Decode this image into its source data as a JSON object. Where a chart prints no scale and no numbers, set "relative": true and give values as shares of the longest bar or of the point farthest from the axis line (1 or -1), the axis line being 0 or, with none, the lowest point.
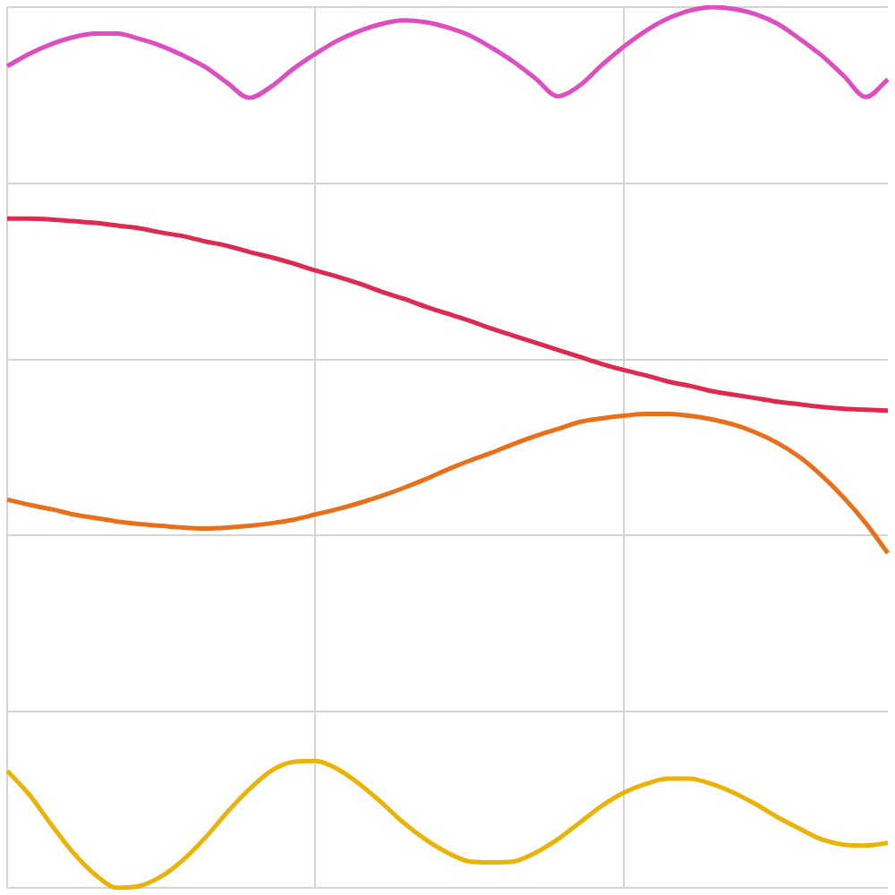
{
  "chart_data": {
    "type": "line",
    "relative": true,
    "grid": true,
    "legend": false,
    "marker": "none",
    "line_style": "solid",
    "categories": [
      null,
      null,
      null,
      null,
      null,
      null,
      null,
      null,
      null,
      null,
      null,
      null,
      null,
      null,
      null,
      null,
      null,
      null,
      null,
      null,
      null,
      null,
      null,
      null,
      null,
      null,
      null,
      null,
      null,
      null,
      null,
      null,
      null,
      null,
      null,
      null,
      null,
      null,
      null,
      null,
      null
    ],
    "series": [
      {
        "color": "#dd4fc0",
        "values": [
          0.933,
          0.947,
          0.958,
          0.966,
          0.97,
          0.97,
          0.964,
          0.956,
          0.945,
          0.932,
          0.914,
          0.897,
          0.91,
          0.93,
          0.947,
          0.962,
          0.973,
          0.981,
          0.985,
          0.983,
          0.977,
          0.968,
          0.954,
          0.938,
          0.919,
          0.899,
          0.911,
          0.934,
          0.955,
          0.973,
          0.987,
          0.996,
          1,
          0.998,
          0.992,
          0.981,
          0.964,
          0.945,
          0.922,
          0.898,
          0.918
        ]
      },
      {
        "color": "#dc2a50",
        "values": [
          0.76,
          0.76,
          0.759,
          0.757,
          0.755,
          0.752,
          0.749,
          0.744,
          0.74,
          0.734,
          0.729,
          0.722,
          0.716,
          0.709,
          0.701,
          0.694,
          0.686,
          0.677,
          0.669,
          0.66,
          0.652,
          0.644,
          0.635,
          0.627,
          0.619,
          0.611,
          0.603,
          0.595,
          0.588,
          0.582,
          0.575,
          0.57,
          0.564,
          0.56,
          0.556,
          0.552,
          0.549,
          0.546,
          0.544,
          0.543,
          0.542
        ]
      },
      {
        "color": "#e8701a",
        "values": [
          0.441,
          0.435,
          0.43,
          0.424,
          0.42,
          0.416,
          0.413,
          0.411,
          0.409,
          0.408,
          0.409,
          0.411,
          0.414,
          0.418,
          0.424,
          0.43,
          0.437,
          0.445,
          0.454,
          0.464,
          0.475,
          0.485,
          0.494,
          0.504,
          0.513,
          0.521,
          0.529,
          0.533,
          0.536,
          0.538,
          0.538,
          0.536,
          0.532,
          0.526,
          0.517,
          0.505,
          0.489,
          0.468,
          0.443,
          0.414,
          0.38
        ]
      },
      {
        "color": "#eab308",
        "values": [
          0.133,
          0.106,
          0.072,
          0.04,
          0.015,
          0,
          0.002,
          0.013,
          0.032,
          0.057,
          0.086,
          0.112,
          0.133,
          0.143,
          0.144,
          0.135,
          0.118,
          0.097,
          0.074,
          0.055,
          0.04,
          0.03,
          0.029,
          0.03,
          0.04,
          0.055,
          0.074,
          0.093,
          0.108,
          0.118,
          0.124,
          0.124,
          0.118,
          0.108,
          0.095,
          0.08,
          0.067,
          0.055,
          0.049,
          0.048,
          0.051
        ]
      }
    ]
  }
}
